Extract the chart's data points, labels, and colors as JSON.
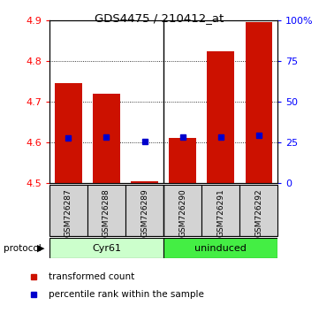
{
  "title": "GDS4475 / 210412_at",
  "samples": [
    "GSM726287",
    "GSM726288",
    "GSM726289",
    "GSM726290",
    "GSM726291",
    "GSM726292"
  ],
  "groups": [
    "Cyr61",
    "Cyr61",
    "Cyr61",
    "uninduced",
    "uninduced",
    "uninduced"
  ],
  "group_labels": [
    "Cyr61",
    "uninduced"
  ],
  "group_colors_cyr": "#ccffcc",
  "group_colors_uni": "#44ee44",
  "bar_bottom": 4.5,
  "bar_tops": [
    4.745,
    4.72,
    4.505,
    4.61,
    4.825,
    4.895
  ],
  "bar_color": "#cc1100",
  "blue_y": [
    4.612,
    4.614,
    4.603,
    4.613,
    4.614,
    4.617
  ],
  "blue_color": "#0000cc",
  "ylim_left": [
    4.5,
    4.9
  ],
  "ylim_right": [
    0,
    100
  ],
  "yticks_left": [
    4.5,
    4.6,
    4.7,
    4.8,
    4.9
  ],
  "ytick_labels_right": [
    "0",
    "25",
    "50",
    "75",
    "100%"
  ],
  "yticks_right": [
    0,
    25,
    50,
    75,
    100
  ],
  "bar_width": 0.7,
  "bg_color": "#ffffff",
  "label_red": "transformed count",
  "label_blue": "percentile rank within the sample",
  "protocol_label": "protocol"
}
